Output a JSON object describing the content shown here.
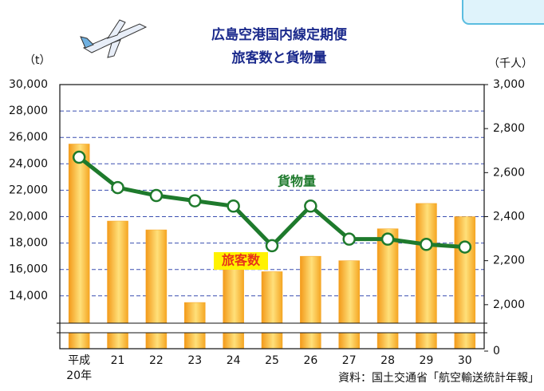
{
  "chart_data": {
    "type": "bar",
    "title": "広島空港国内線定期便",
    "subtitle": "旅客数と貨物量",
    "y_label": "（t）",
    "y2_label": "（千人）",
    "categories": [
      "平成20年",
      "21",
      "22",
      "23",
      "24",
      "25",
      "26",
      "27",
      "28",
      "29",
      "30"
    ],
    "series": [
      {
        "name": "旅客数",
        "type": "bar",
        "axis": "y2",
        "color": "#f5a21e",
        "values": [
          2730,
          2380,
          2340,
          2010,
          2160,
          2150,
          2220,
          2200,
          2345,
          2460,
          2400
        ]
      },
      {
        "name": "貨物量",
        "type": "line",
        "color": "#1e7a2c",
        "values": [
          24500,
          22200,
          21600,
          21200,
          20800,
          17800,
          20800,
          18300,
          18300,
          17900,
          17700
        ]
      }
    ],
    "ylim": [
      10000,
      30000
    ],
    "yticks": [
      {
        "value": 14000,
        "label": "14,000"
      },
      {
        "value": 16000,
        "label": "16,000"
      },
      {
        "value": 18000,
        "label": "18,000"
      },
      {
        "value": 20000,
        "label": "20,000"
      },
      {
        "value": 22000,
        "label": "22,000"
      },
      {
        "value": 24000,
        "label": "24,000"
      },
      {
        "value": 26000,
        "label": "26,000"
      },
      {
        "value": 28000,
        "label": "28,000"
      },
      {
        "value": 30000,
        "label": "30,000"
      }
    ],
    "y2lim": [
      1800,
      3000
    ],
    "y2ticks": [
      0,
      {
        "value": 2000,
        "label": "2,000"
      },
      {
        "value": 2200,
        "label": "2,200"
      },
      {
        "value": 2400,
        "label": "2,400"
      },
      {
        "value": 2600,
        "label": "2,600"
      },
      {
        "value": 2800,
        "label": "2,800"
      },
      {
        "value": 3000,
        "label": "3,000"
      }
    ],
    "grid": true,
    "axis_break": true,
    "source": "資料：国土交通省「航空輸送統計年報」"
  }
}
